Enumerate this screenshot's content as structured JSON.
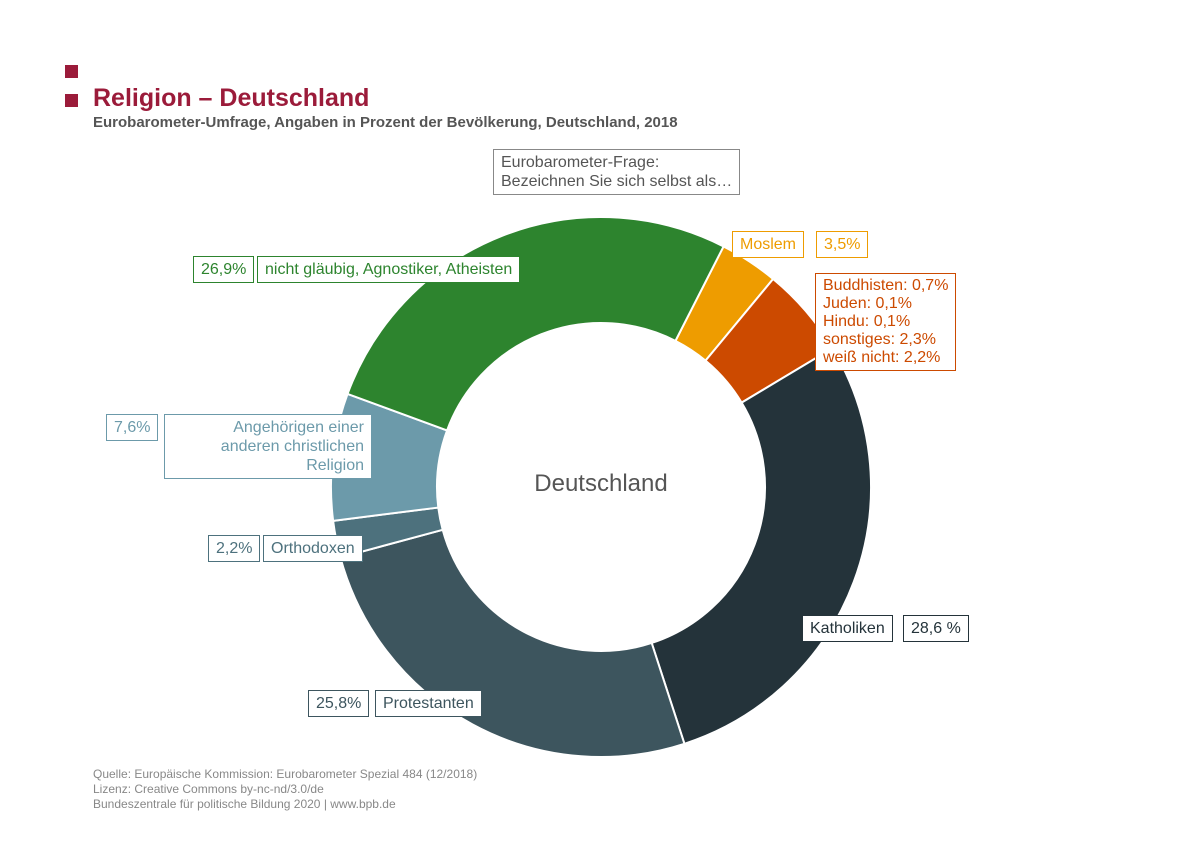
{
  "title": "Religion – Deutschland",
  "subtitle": "Eurobarometer-Umfrage, Angaben in Prozent der Bevölkerung, Deutschland, 2018",
  "question": [
    "Eurobarometer-Frage:",
    "Bezeichnen Sie sich selbst als…"
  ],
  "center_label": "Deutschland",
  "source": [
    "Quelle: Europäische Kommission: Eurobarometer Spezial 484 (12/2018)",
    "Lizenz: Creative Commons by-nc-nd/3.0/de",
    "Bundeszentrale für politische Bildung 2020  |  www.bpb.de"
  ],
  "chart_data": {
    "type": "pie",
    "title": "Religion – Deutschland",
    "start_angle_deg": 27,
    "slices": [
      {
        "name": "Moslem",
        "value": 3.5,
        "label": "3,5%",
        "color": "#ee9c00"
      },
      {
        "name": "Sonstige",
        "value": 5.4,
        "label": [
          "Buddhisten: 0,7%",
          "Juden: 0,1%",
          "Hindu: 0,1%",
          "sonstiges: 2,3%",
          "weiß nicht: 2,2%"
        ],
        "color": "#cc4a00"
      },
      {
        "name": "Katholiken",
        "value": 28.6,
        "label": "28,6 %",
        "color": "#24333a"
      },
      {
        "name": "Protestanten",
        "value": 25.8,
        "label": "25,8%",
        "color": "#3d555e"
      },
      {
        "name": "Orthodoxen",
        "value": 2.2,
        "label": "2,2%",
        "color": "#4d717d"
      },
      {
        "name": "Angehörigen einer anderen christlichen Religion",
        "value": 7.6,
        "label": "7,6%",
        "color": "#6c9aaa"
      },
      {
        "name": "nicht gläubig, Agnostiker, Atheisten",
        "value": 26.9,
        "label": "26,9%",
        "color": "#2d842e"
      }
    ]
  }
}
